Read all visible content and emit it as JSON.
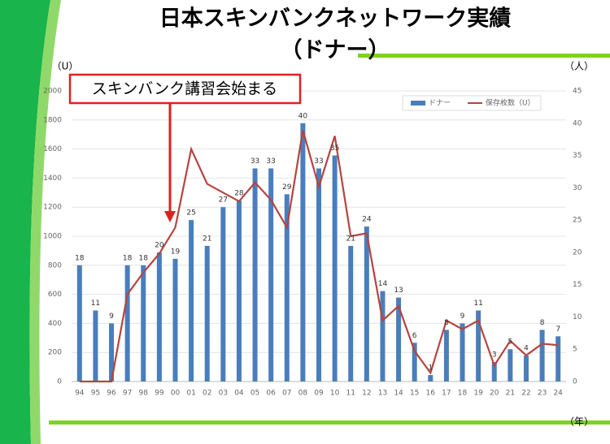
{
  "chart_data": {
    "type": "bar",
    "title": "日本スキンバンクネットワーク実績",
    "subtitle": "（ドナー）",
    "annotation": "スキンバンク講習会始まる",
    "y_label": "（U）",
    "y2_label": "（人）",
    "x_label": "（年）",
    "categories": [
      "94",
      "95",
      "96",
      "97",
      "98",
      "99",
      "00",
      "01",
      "02",
      "03",
      "04",
      "05",
      "06",
      "07",
      "08",
      "09",
      "10",
      "11",
      "12",
      "13",
      "14",
      "15",
      "16",
      "17",
      "18",
      "19",
      "20",
      "21",
      "22",
      "23",
      "24"
    ],
    "series": [
      {
        "name": "ドナー",
        "type": "bar",
        "axis": "y2",
        "color": "#4a7ebb",
        "values": [
          18,
          11,
          9,
          18,
          18,
          20,
          19,
          25,
          21,
          27,
          28,
          33,
          33,
          29,
          40,
          33,
          35,
          21,
          24,
          14,
          13,
          6,
          1,
          8,
          9,
          11,
          3,
          5,
          4,
          8,
          7
        ]
      },
      {
        "name": "保存枚数（U）",
        "type": "line",
        "axis": "y",
        "color": "#b5443f",
        "values": [
          0,
          0,
          0,
          600,
          750,
          880,
          1060,
          1600,
          1360,
          1300,
          1240,
          1370,
          1250,
          1060,
          1730,
          1340,
          1690,
          1000,
          1020,
          420,
          520,
          210,
          60,
          420,
          360,
          420,
          110,
          280,
          180,
          260,
          250
        ]
      }
    ],
    "ylim": [
      0,
      2000
    ],
    "yticks": [
      0,
      200,
      400,
      600,
      800,
      1000,
      1200,
      1400,
      1600,
      1800,
      2000
    ],
    "y2lim": [
      0,
      45
    ],
    "y2ticks": [
      0,
      5,
      10,
      15,
      20,
      25,
      30,
      35,
      40,
      45
    ],
    "grid": true,
    "legend": "top-right"
  }
}
